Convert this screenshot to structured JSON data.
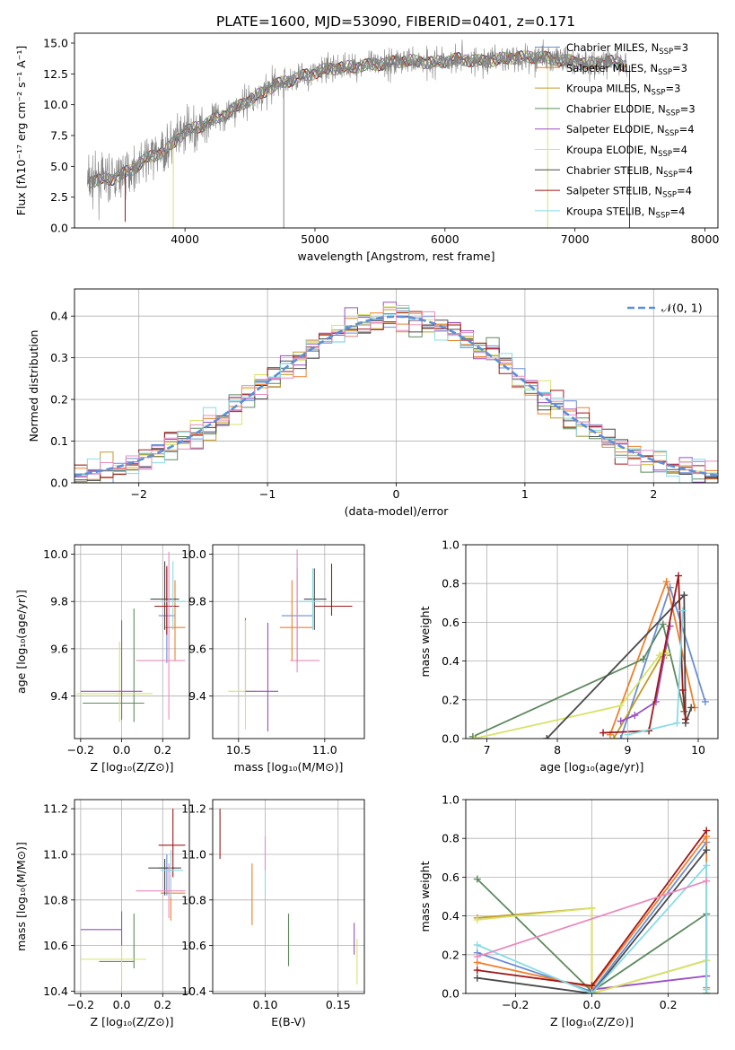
{
  "title": "PLATE=1600, MJD=53090, FIBERID=0401, z=0.171",
  "colors": {
    "Chabrier MILES": "#6a8fd6",
    "Salpeter MILES": "#f07f2a",
    "Kroupa MILES": "#c49a2a",
    "Chabrier ELODIE": "#5f8a5f",
    "Salpeter ELODIE": "#9b4fc0",
    "Kroupa ELODIE": "#d8e36a",
    "Chabrier STELIB": "#4a4a4a",
    "Salpeter STELIB": "#a01818",
    "Kroupa STELIB": "#88dbe6",
    "pink": "#e88cbf",
    "data": "#808080",
    "gaussian": "#5b8fd8",
    "grid": "#b0b0b0"
  },
  "chart_data": [
    {
      "id": "spectrum",
      "type": "line",
      "title": "PLATE=1600, MJD=53090, FIBERID=0401, z=0.171",
      "xlabel": "wavelength [Angstrom, rest frame]",
      "ylabel": "Flux [fλ10⁻¹⁷ erg cm⁻² s⁻¹ A⁻¹]",
      "xlim": [
        3150,
        8100
      ],
      "ylim": [
        0,
        15.8
      ],
      "xticks": [
        4000,
        5000,
        6000,
        7000,
        8000
      ],
      "yticks": [
        0.0,
        2.5,
        5.0,
        7.5,
        10.0,
        12.5,
        15.0
      ],
      "grid": false,
      "legend_position": "top-right",
      "legend": [
        {
          "name": "Chabrier MILES",
          "sub": "SSP",
          "n": "=3"
        },
        {
          "name": "Salpeter MILES",
          "sub": "SSP",
          "n": "=3"
        },
        {
          "name": "Kroupa MILES",
          "sub": "SSP",
          "n": "=3"
        },
        {
          "name": "Chabrier ELODIE",
          "sub": "SSP",
          "n": "=3"
        },
        {
          "name": "Salpeter ELODIE",
          "sub": "SSP",
          "n": "=4"
        },
        {
          "name": "Kroupa ELODIE",
          "sub": "SSP",
          "n": "=4"
        },
        {
          "name": "Chabrier STELIB",
          "sub": "SSP",
          "n": "=4"
        },
        {
          "name": "Salpeter STELIB",
          "sub": "SSP",
          "n": "=4"
        },
        {
          "name": "Kroupa STELIB",
          "sub": "SSP",
          "n": "=4"
        }
      ],
      "continuum": {
        "x": [
          3250,
          3450,
          3600,
          3700,
          3850,
          4000,
          4150,
          4300,
          4500,
          4700,
          4900,
          5100,
          5300,
          5500,
          5700,
          5900,
          6100,
          6300,
          6500,
          6700,
          6900,
          7100,
          7300,
          7400
        ],
        "y": [
          3.8,
          4.0,
          4.8,
          5.6,
          6.3,
          7.8,
          8.4,
          9.2,
          10.4,
          11.6,
          12.3,
          12.9,
          13.1,
          13.3,
          13.6,
          13.4,
          13.7,
          13.5,
          13.8,
          13.9,
          13.6,
          13.3,
          13.5,
          13.2
        ]
      },
      "drops": [
        {
          "x": 3540,
          "y": 0.5,
          "series": "Salpeter STELIB"
        },
        {
          "x": 3910,
          "y": 0.0,
          "series": "Kroupa ELODIE"
        },
        {
          "x": 4760,
          "y": 0.0,
          "series": "data"
        },
        {
          "x": 6790,
          "y": 0.0,
          "series": "Kroupa ELODIE"
        },
        {
          "x": 7420,
          "y": 0.0,
          "series": "Salpeter STELIB"
        }
      ]
    },
    {
      "id": "residuals",
      "type": "line",
      "xlabel": "(data-model)/error",
      "ylabel": "Normed distribution",
      "xlim": [
        -2.5,
        2.5
      ],
      "ylim": [
        0,
        0.465
      ],
      "xticks": [
        -2,
        -1,
        0,
        1,
        2
      ],
      "yticks": [
        0.0,
        0.1,
        0.2,
        0.3,
        0.4
      ],
      "grid": true,
      "legend_position": "top-right",
      "legend": [
        {
          "name": "𝒩(0, 1)"
        }
      ],
      "bin_width": 0.1,
      "series": [
        "Chabrier MILES",
        "Salpeter MILES",
        "Kroupa MILES",
        "Chabrier ELODIE",
        "Salpeter ELODIE",
        "Kroupa ELODIE",
        "Chabrier STELIB",
        "Salpeter STELIB",
        "Kroupa STELIB",
        "pink"
      ]
    },
    {
      "id": "age-vs-z",
      "type": "scatter",
      "xlabel": "Z [log₁₀(Z/Z⊙)]",
      "ylabel": "age  [log₁₀(age/yr)]",
      "xlim": [
        -0.23,
        0.33
      ],
      "ylim": [
        9.22,
        10.04
      ],
      "xticks": [
        -0.2,
        0.0,
        0.2
      ],
      "yticks": [
        9.4,
        9.6,
        9.8,
        10.0
      ],
      "grid": true,
      "points": [
        {
          "x": 0.22,
          "xerr": [
            0.04,
            0.04
          ],
          "y": 9.74,
          "yerr": [
            0.2,
            0.2
          ],
          "series": "Chabrier MILES"
        },
        {
          "x": 0.26,
          "xerr": [
            0.05,
            0.05
          ],
          "y": 9.69,
          "yerr": [
            0.14,
            0.2
          ],
          "series": "Salpeter MILES"
        },
        {
          "x": 0.21,
          "xerr": [
            0.07,
            0.07
          ],
          "y": 9.81,
          "yerr": [
            0.13,
            0.16
          ],
          "series": "Chabrier STELIB"
        },
        {
          "x": 0.22,
          "xerr": [
            0.06,
            0.06
          ],
          "y": 9.78,
          "yerr": [
            0.12,
            0.17
          ],
          "series": "Salpeter STELIB"
        },
        {
          "x": 0.25,
          "xerr": [
            0.06,
            0.06
          ],
          "y": 9.8,
          "yerr": [
            0.12,
            0.17
          ],
          "series": "Kroupa STELIB"
        },
        {
          "x": 0.23,
          "xerr": [
            0.16,
            0.08
          ],
          "y": 9.55,
          "yerr": [
            0.25,
            0.46
          ],
          "series": "pink"
        },
        {
          "x": 0.06,
          "xerr": [
            0.25,
            0.05
          ],
          "y": 9.37,
          "yerr": [
            0.08,
            0.4
          ],
          "series": "Chabrier ELODIE"
        },
        {
          "x": -0.01,
          "xerr": [
            0.21,
            0.16
          ],
          "y": 9.41,
          "yerr": [
            0.12,
            0.22
          ],
          "series": "Kroupa ELODIE"
        },
        {
          "x": 0.0,
          "xerr": [
            0.2,
            0.1
          ],
          "y": 9.42,
          "yerr": [
            0.12,
            0.3
          ],
          "series": "Salpeter ELODIE"
        }
      ]
    },
    {
      "id": "age-vs-mass",
      "type": "scatter",
      "xlabel": "mass [log₁₀(M/M⊙)]",
      "xlim": [
        10.35,
        11.23
      ],
      "ylim": [
        9.22,
        10.04
      ],
      "xticks": [
        10.5,
        11.0
      ],
      "yticks": [
        9.4,
        9.6,
        9.8,
        10.0
      ],
      "grid": true,
      "points": [
        {
          "x": 10.84,
          "xerr": [
            0.09,
            0.09
          ],
          "y": 9.74,
          "yerr": [
            0.2,
            0.2
          ],
          "series": "Chabrier MILES"
        },
        {
          "x": 10.81,
          "xerr": [
            0.07,
            0.12
          ],
          "y": 9.69,
          "yerr": [
            0.14,
            0.2
          ],
          "series": "Salpeter MILES"
        },
        {
          "x": 10.94,
          "xerr": [
            0.06,
            0.07
          ],
          "y": 9.81,
          "yerr": [
            0.13,
            0.13
          ],
          "series": "Chabrier STELIB"
        },
        {
          "x": 11.04,
          "xerr": [
            0.1,
            0.12
          ],
          "y": 9.78,
          "yerr": [
            0.04,
            0.18
          ],
          "series": "Salpeter STELIB"
        },
        {
          "x": 10.93,
          "xerr": [
            0.1,
            0.04
          ],
          "y": 9.8,
          "yerr": [
            0.12,
            0.14
          ],
          "series": "Kroupa STELIB"
        },
        {
          "x": 10.84,
          "xerr": [
            0.04,
            0.13
          ],
          "y": 9.55,
          "yerr": [
            0.05,
            0.47
          ],
          "series": "pink"
        },
        {
          "x": 10.54,
          "xerr": [
            0.0,
            0.0
          ],
          "y": 9.6,
          "yerr": [
            0.2,
            0.13
          ],
          "series": "Chabrier ELODIE"
        },
        {
          "x": 10.54,
          "xerr": [
            0.1,
            0.06
          ],
          "y": 9.42,
          "yerr": [
            0.16,
            0.3
          ],
          "series": "Kroupa ELODIE"
        },
        {
          "x": 10.67,
          "xerr": [
            0.13,
            0.06
          ],
          "y": 9.42,
          "yerr": [
            0.17,
            0.29
          ],
          "series": "Salpeter ELODIE"
        }
      ]
    },
    {
      "id": "mass-weight-vs-age",
      "type": "line",
      "xlabel": "age  [log₁₀(age/yr)]",
      "ylabel": "mass weight",
      "xlim": [
        6.7,
        10.28
      ],
      "ylim": [
        0,
        1.0
      ],
      "xticks": [
        7,
        8,
        9,
        10
      ],
      "yticks": [
        0.0,
        0.2,
        0.4,
        0.6,
        0.8,
        1.0
      ],
      "grid": true,
      "series": [
        {
          "name": "Chabrier MILES",
          "x": [
            8.9,
            9.6,
            10.1
          ],
          "y": [
            0.0,
            0.78,
            0.19
          ]
        },
        {
          "name": "Salpeter MILES",
          "x": [
            8.75,
            9.55,
            9.95
          ],
          "y": [
            0.02,
            0.81,
            0.16
          ]
        },
        {
          "name": "Kroupa MILES",
          "x": [
            8.8,
            9.5,
            9.55
          ],
          "y": [
            0.0,
            0.44,
            0.43
          ]
        },
        {
          "name": "Chabrier ELODIE",
          "x": [
            6.8,
            9.22,
            9.5,
            9.8
          ],
          "y": [
            0.01,
            0.41,
            0.59,
            0.14
          ]
        },
        {
          "name": "Salpeter ELODIE",
          "x": [
            8.9,
            9.1,
            9.4,
            9.6
          ],
          "y": [
            0.09,
            0.12,
            0.19,
            0.58
          ]
        },
        {
          "name": "Kroupa ELODIE",
          "x": [
            6.82,
            8.9,
            9.45,
            9.5,
            9.55
          ],
          "y": [
            0.0,
            0.17,
            0.43,
            0.44,
            0.44
          ]
        },
        {
          "name": "Chabrier STELIB",
          "x": [
            7.85,
            9.8,
            9.82,
            9.9
          ],
          "y": [
            0.0,
            0.74,
            0.08,
            0.16
          ]
        },
        {
          "name": "Salpeter STELIB",
          "x": [
            8.65,
            9.3,
            9.72,
            9.78,
            9.82
          ],
          "y": [
            0.03,
            0.04,
            0.84,
            0.25,
            0.1
          ]
        },
        {
          "name": "Kroupa STELIB",
          "x": [
            9.0,
            9.7,
            9.78
          ],
          "y": [
            0.02,
            0.08,
            0.66
          ]
        }
      ]
    },
    {
      "id": "mass-vs-z",
      "type": "scatter",
      "xlabel": "Z [log₁₀(Z/Z⊙)]",
      "ylabel": "mass [log₁₀(M/M⊙)]",
      "xlim": [
        -0.23,
        0.33
      ],
      "ylim": [
        10.39,
        11.24
      ],
      "xticks": [
        -0.2,
        0.0,
        0.2
      ],
      "yticks": [
        10.4,
        10.6,
        10.8,
        11.0,
        11.2
      ],
      "grid": true,
      "points": [
        {
          "x": 0.22,
          "xerr": [
            0.04,
            0.04
          ],
          "y": 10.94,
          "yerr": [
            0.12,
            0.06
          ],
          "series": "Chabrier MILES"
        },
        {
          "x": 0.24,
          "xerr": [
            0.05,
            0.07
          ],
          "y": 10.83,
          "yerr": [
            0.12,
            0.08
          ],
          "series": "Salpeter MILES"
        },
        {
          "x": 0.21,
          "xerr": [
            0.08,
            0.08
          ],
          "y": 10.94,
          "yerr": [
            0.12,
            0.04
          ],
          "series": "Chabrier STELIB"
        },
        {
          "x": 0.25,
          "xerr": [
            0.07,
            0.06
          ],
          "y": 11.04,
          "yerr": [
            0.14,
            0.16
          ],
          "series": "Salpeter STELIB"
        },
        {
          "x": 0.24,
          "xerr": [
            0.05,
            0.06
          ],
          "y": 10.93,
          "yerr": [
            0.12,
            0.09
          ],
          "series": "Kroupa STELIB"
        },
        {
          "x": 0.23,
          "xerr": [
            0.16,
            0.08
          ],
          "y": 10.84,
          "yerr": [
            0.12,
            0.12
          ],
          "series": "pink"
        },
        {
          "x": 0.06,
          "xerr": [
            0.17,
            0.0
          ],
          "y": 10.53,
          "yerr": [
            0.03,
            0.21
          ],
          "series": "Chabrier ELODIE"
        },
        {
          "x": 0.0,
          "xerr": [
            0.2,
            0.12
          ],
          "y": 10.54,
          "yerr": [
            0.12,
            0.08
          ],
          "series": "Kroupa ELODIE"
        },
        {
          "x": 0.0,
          "xerr": [
            0.2,
            0.0
          ],
          "y": 10.67,
          "yerr": [
            0.07,
            0.08
          ],
          "series": "Salpeter ELODIE"
        }
      ]
    },
    {
      "id": "mass-vs-ebv",
      "type": "scatter",
      "xlabel": "E(B-V)",
      "xlim": [
        0.064,
        0.168
      ],
      "ylim": [
        10.39,
        11.24
      ],
      "xticks": [
        0.1,
        0.15
      ],
      "yticks": [
        10.4,
        10.6,
        10.8,
        11.0,
        11.2
      ],
      "grid": true,
      "points": [
        {
          "x": 0.069,
          "y": 11.09,
          "yerr": [
            0.11,
            0.11
          ],
          "series": "Salpeter STELIB"
        },
        {
          "x": 0.091,
          "y": 10.83,
          "yerr": [
            0.14,
            0.13
          ],
          "series": "Salpeter MILES"
        },
        {
          "x": 0.1,
          "y": 10.95,
          "yerr": [
            0.12,
            0.12
          ],
          "series": "Kroupa STELIB"
        },
        {
          "x": 0.1,
          "y": 10.98,
          "yerr": [
            0.05,
            0.1
          ],
          "series": "pink"
        },
        {
          "x": 0.116,
          "y": 10.63,
          "yerr": [
            0.12,
            0.11
          ],
          "series": "Chabrier ELODIE"
        },
        {
          "x": 0.161,
          "y": 10.62,
          "yerr": [
            0.06,
            0.08
          ],
          "series": "Salpeter ELODIE"
        },
        {
          "x": 0.163,
          "y": 10.53,
          "yerr": [
            0.1,
            0.1
          ],
          "series": "Kroupa ELODIE"
        }
      ]
    },
    {
      "id": "mass-weight-vs-z",
      "type": "line",
      "xlabel": "Z [log₁₀(Z/Z⊙)]",
      "ylabel": "mass weight",
      "xlim": [
        -0.33,
        0.33
      ],
      "ylim": [
        0,
        1.0
      ],
      "xticks": [
        -0.2,
        0.0,
        0.2
      ],
      "yticks": [
        0.0,
        0.2,
        0.4,
        0.6,
        0.8,
        1.0
      ],
      "grid": true,
      "series": [
        {
          "name": "Chabrier MILES",
          "x": [
            -0.3,
            0.0,
            0.3
          ],
          "y": [
            0.21,
            0.01,
            0.78
          ]
        },
        {
          "name": "Salpeter MILES",
          "x": [
            -0.3,
            0.0,
            0.3,
            0.3
          ],
          "y": [
            0.16,
            0.03,
            0.81,
            0.03
          ]
        },
        {
          "name": "Kroupa MILES",
          "x": [
            -0.3,
            0.0,
            0.0,
            0.3
          ],
          "y": [
            0.39,
            0.44,
            0.0,
            0.17
          ]
        },
        {
          "name": "Chabrier ELODIE",
          "x": [
            -0.3,
            0.0,
            0.3,
            0.3
          ],
          "y": [
            0.59,
            0.01,
            0.41,
            0.0
          ]
        },
        {
          "name": "Salpeter ELODIE",
          "x": [
            0.0,
            0.3
          ],
          "y": [
            0.02,
            0.09
          ]
        },
        {
          "name": "Kroupa ELODIE",
          "x": [
            -0.3,
            0.0,
            0.0,
            0.3
          ],
          "y": [
            0.38,
            0.44,
            0.0,
            0.17
          ]
        },
        {
          "name": "Chabrier STELIB",
          "x": [
            -0.3,
            0.0,
            0.3
          ],
          "y": [
            0.08,
            0.0,
            0.74
          ]
        },
        {
          "name": "Salpeter STELIB",
          "x": [
            -0.3,
            0.0,
            0.3
          ],
          "y": [
            0.12,
            0.04,
            0.84
          ]
        },
        {
          "name": "Kroupa STELIB",
          "x": [
            -0.3,
            0.0,
            0.3,
            0.3
          ],
          "y": [
            0.25,
            0.0,
            0.66,
            0.02
          ]
        },
        {
          "name": "pink",
          "x": [
            -0.3,
            0.3
          ],
          "y": [
            0.19,
            0.58
          ]
        }
      ]
    }
  ]
}
